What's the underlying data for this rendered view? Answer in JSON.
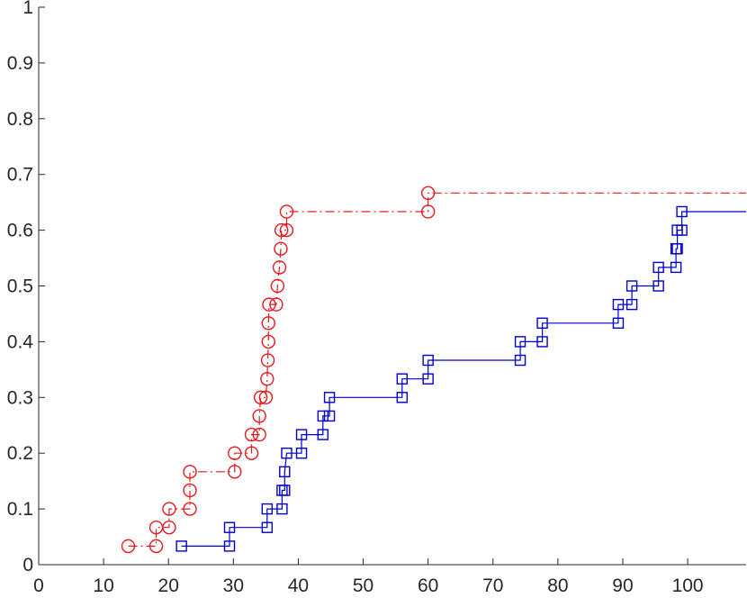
{
  "chart_data": {
    "type": "line",
    "title": "",
    "xlabel": "",
    "ylabel": "",
    "xlim": [
      0,
      109
    ],
    "ylim": [
      0,
      1
    ],
    "x_ticks": [
      0,
      10,
      20,
      30,
      40,
      50,
      60,
      70,
      80,
      90,
      100
    ],
    "y_ticks": [
      0,
      0.1,
      0.2,
      0.3,
      0.4,
      0.5,
      0.6,
      0.7,
      0.8,
      0.9,
      1
    ],
    "x_tick_labels": [
      "0",
      "10",
      "20",
      "30",
      "40",
      "50",
      "60",
      "70",
      "80",
      "90",
      "100"
    ],
    "y_tick_labels": [
      "0",
      "0.1",
      "0.2",
      "0.3",
      "0.4",
      "0.5",
      "0.6",
      "0.7",
      "0.8",
      "0.9",
      "1"
    ],
    "grid": false,
    "legend": "none",
    "series": [
      {
        "color": "#e41a1c",
        "line_style": "dash-dot",
        "marker": "circle",
        "step": true,
        "points": [
          [
            13.8,
            0.0333
          ],
          [
            18.1,
            0.0333
          ],
          [
            18.1,
            0.0667
          ],
          [
            20.1,
            0.0667
          ],
          [
            20.1,
            0.1
          ],
          [
            23.3,
            0.1
          ],
          [
            23.3,
            0.1333
          ],
          [
            23.3,
            0.1667
          ],
          [
            30.2,
            0.1667
          ],
          [
            30.2,
            0.2
          ],
          [
            32.8,
            0.2
          ],
          [
            32.8,
            0.2333
          ],
          [
            34.0,
            0.2333
          ],
          [
            34.0,
            0.2667
          ],
          [
            34.2,
            0.3
          ],
          [
            35.0,
            0.3
          ],
          [
            35.2,
            0.3333
          ],
          [
            35.3,
            0.3667
          ],
          [
            35.4,
            0.4
          ],
          [
            35.4,
            0.4333
          ],
          [
            35.5,
            0.4667
          ],
          [
            36.6,
            0.4667
          ],
          [
            36.8,
            0.5
          ],
          [
            37.1,
            0.5333
          ],
          [
            37.3,
            0.5667
          ],
          [
            37.4,
            0.6
          ],
          [
            38.2,
            0.6
          ],
          [
            38.2,
            0.6333
          ],
          [
            60.0,
            0.6333
          ],
          [
            60.0,
            0.6667
          ]
        ],
        "extend_to": 109
      },
      {
        "color": "#0000cc",
        "line_style": "solid",
        "marker": "square",
        "step": true,
        "points": [
          [
            22.0,
            0.0333
          ],
          [
            29.4,
            0.0333
          ],
          [
            29.4,
            0.0667
          ],
          [
            35.2,
            0.0667
          ],
          [
            35.2,
            0.1
          ],
          [
            37.5,
            0.1
          ],
          [
            37.5,
            0.1333
          ],
          [
            37.9,
            0.1333
          ],
          [
            37.9,
            0.1667
          ],
          [
            38.2,
            0.2
          ],
          [
            40.5,
            0.2
          ],
          [
            40.5,
            0.2333
          ],
          [
            43.8,
            0.2333
          ],
          [
            43.8,
            0.2667
          ],
          [
            44.8,
            0.2667
          ],
          [
            44.8,
            0.3
          ],
          [
            56.0,
            0.3
          ],
          [
            56.0,
            0.3333
          ],
          [
            60.0,
            0.3333
          ],
          [
            60.0,
            0.3667
          ],
          [
            74.2,
            0.3667
          ],
          [
            74.2,
            0.4
          ],
          [
            77.6,
            0.4
          ],
          [
            77.6,
            0.4333
          ],
          [
            89.3,
            0.4333
          ],
          [
            89.3,
            0.4667
          ],
          [
            91.4,
            0.4667
          ],
          [
            91.4,
            0.5
          ],
          [
            95.5,
            0.5
          ],
          [
            95.5,
            0.5333
          ],
          [
            98.2,
            0.5333
          ],
          [
            98.2,
            0.5667
          ],
          [
            98.4,
            0.5667
          ],
          [
            98.4,
            0.6
          ],
          [
            99.1,
            0.6
          ],
          [
            99.1,
            0.6333
          ]
        ],
        "extend_to": 109
      }
    ]
  }
}
